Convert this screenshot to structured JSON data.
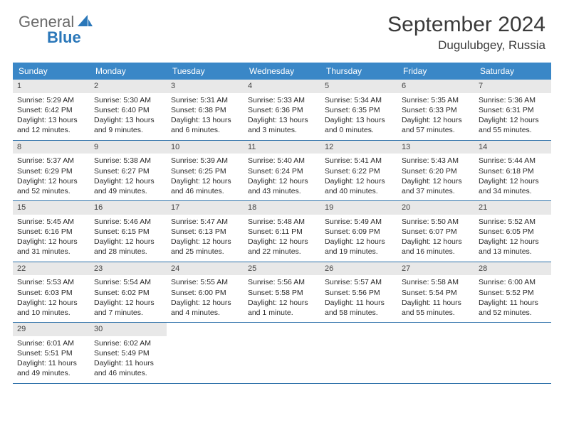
{
  "brand": {
    "part1": "General",
    "part2": "Blue"
  },
  "title": "September 2024",
  "location": "Dugulubgey, Russia",
  "colors": {
    "header_bg": "#3a87c7",
    "header_text": "#ffffff",
    "daynum_bg": "#e8e8e8",
    "border": "#2a6fa8",
    "brand_gray": "#6a6a6a",
    "brand_blue": "#2a77b9"
  },
  "weekdays": [
    "Sunday",
    "Monday",
    "Tuesday",
    "Wednesday",
    "Thursday",
    "Friday",
    "Saturday"
  ],
  "weeks": [
    [
      {
        "n": "1",
        "sr": "Sunrise: 5:29 AM",
        "ss": "Sunset: 6:42 PM",
        "dl": "Daylight: 13 hours and 12 minutes."
      },
      {
        "n": "2",
        "sr": "Sunrise: 5:30 AM",
        "ss": "Sunset: 6:40 PM",
        "dl": "Daylight: 13 hours and 9 minutes."
      },
      {
        "n": "3",
        "sr": "Sunrise: 5:31 AM",
        "ss": "Sunset: 6:38 PM",
        "dl": "Daylight: 13 hours and 6 minutes."
      },
      {
        "n": "4",
        "sr": "Sunrise: 5:33 AM",
        "ss": "Sunset: 6:36 PM",
        "dl": "Daylight: 13 hours and 3 minutes."
      },
      {
        "n": "5",
        "sr": "Sunrise: 5:34 AM",
        "ss": "Sunset: 6:35 PM",
        "dl": "Daylight: 13 hours and 0 minutes."
      },
      {
        "n": "6",
        "sr": "Sunrise: 5:35 AM",
        "ss": "Sunset: 6:33 PM",
        "dl": "Daylight: 12 hours and 57 minutes."
      },
      {
        "n": "7",
        "sr": "Sunrise: 5:36 AM",
        "ss": "Sunset: 6:31 PM",
        "dl": "Daylight: 12 hours and 55 minutes."
      }
    ],
    [
      {
        "n": "8",
        "sr": "Sunrise: 5:37 AM",
        "ss": "Sunset: 6:29 PM",
        "dl": "Daylight: 12 hours and 52 minutes."
      },
      {
        "n": "9",
        "sr": "Sunrise: 5:38 AM",
        "ss": "Sunset: 6:27 PM",
        "dl": "Daylight: 12 hours and 49 minutes."
      },
      {
        "n": "10",
        "sr": "Sunrise: 5:39 AM",
        "ss": "Sunset: 6:25 PM",
        "dl": "Daylight: 12 hours and 46 minutes."
      },
      {
        "n": "11",
        "sr": "Sunrise: 5:40 AM",
        "ss": "Sunset: 6:24 PM",
        "dl": "Daylight: 12 hours and 43 minutes."
      },
      {
        "n": "12",
        "sr": "Sunrise: 5:41 AM",
        "ss": "Sunset: 6:22 PM",
        "dl": "Daylight: 12 hours and 40 minutes."
      },
      {
        "n": "13",
        "sr": "Sunrise: 5:43 AM",
        "ss": "Sunset: 6:20 PM",
        "dl": "Daylight: 12 hours and 37 minutes."
      },
      {
        "n": "14",
        "sr": "Sunrise: 5:44 AM",
        "ss": "Sunset: 6:18 PM",
        "dl": "Daylight: 12 hours and 34 minutes."
      }
    ],
    [
      {
        "n": "15",
        "sr": "Sunrise: 5:45 AM",
        "ss": "Sunset: 6:16 PM",
        "dl": "Daylight: 12 hours and 31 minutes."
      },
      {
        "n": "16",
        "sr": "Sunrise: 5:46 AM",
        "ss": "Sunset: 6:15 PM",
        "dl": "Daylight: 12 hours and 28 minutes."
      },
      {
        "n": "17",
        "sr": "Sunrise: 5:47 AM",
        "ss": "Sunset: 6:13 PM",
        "dl": "Daylight: 12 hours and 25 minutes."
      },
      {
        "n": "18",
        "sr": "Sunrise: 5:48 AM",
        "ss": "Sunset: 6:11 PM",
        "dl": "Daylight: 12 hours and 22 minutes."
      },
      {
        "n": "19",
        "sr": "Sunrise: 5:49 AM",
        "ss": "Sunset: 6:09 PM",
        "dl": "Daylight: 12 hours and 19 minutes."
      },
      {
        "n": "20",
        "sr": "Sunrise: 5:50 AM",
        "ss": "Sunset: 6:07 PM",
        "dl": "Daylight: 12 hours and 16 minutes."
      },
      {
        "n": "21",
        "sr": "Sunrise: 5:52 AM",
        "ss": "Sunset: 6:05 PM",
        "dl": "Daylight: 12 hours and 13 minutes."
      }
    ],
    [
      {
        "n": "22",
        "sr": "Sunrise: 5:53 AM",
        "ss": "Sunset: 6:03 PM",
        "dl": "Daylight: 12 hours and 10 minutes."
      },
      {
        "n": "23",
        "sr": "Sunrise: 5:54 AM",
        "ss": "Sunset: 6:02 PM",
        "dl": "Daylight: 12 hours and 7 minutes."
      },
      {
        "n": "24",
        "sr": "Sunrise: 5:55 AM",
        "ss": "Sunset: 6:00 PM",
        "dl": "Daylight: 12 hours and 4 minutes."
      },
      {
        "n": "25",
        "sr": "Sunrise: 5:56 AM",
        "ss": "Sunset: 5:58 PM",
        "dl": "Daylight: 12 hours and 1 minute."
      },
      {
        "n": "26",
        "sr": "Sunrise: 5:57 AM",
        "ss": "Sunset: 5:56 PM",
        "dl": "Daylight: 11 hours and 58 minutes."
      },
      {
        "n": "27",
        "sr": "Sunrise: 5:58 AM",
        "ss": "Sunset: 5:54 PM",
        "dl": "Daylight: 11 hours and 55 minutes."
      },
      {
        "n": "28",
        "sr": "Sunrise: 6:00 AM",
        "ss": "Sunset: 5:52 PM",
        "dl": "Daylight: 11 hours and 52 minutes."
      }
    ],
    [
      {
        "n": "29",
        "sr": "Sunrise: 6:01 AM",
        "ss": "Sunset: 5:51 PM",
        "dl": "Daylight: 11 hours and 49 minutes."
      },
      {
        "n": "30",
        "sr": "Sunrise: 6:02 AM",
        "ss": "Sunset: 5:49 PM",
        "dl": "Daylight: 11 hours and 46 minutes."
      },
      null,
      null,
      null,
      null,
      null
    ]
  ]
}
